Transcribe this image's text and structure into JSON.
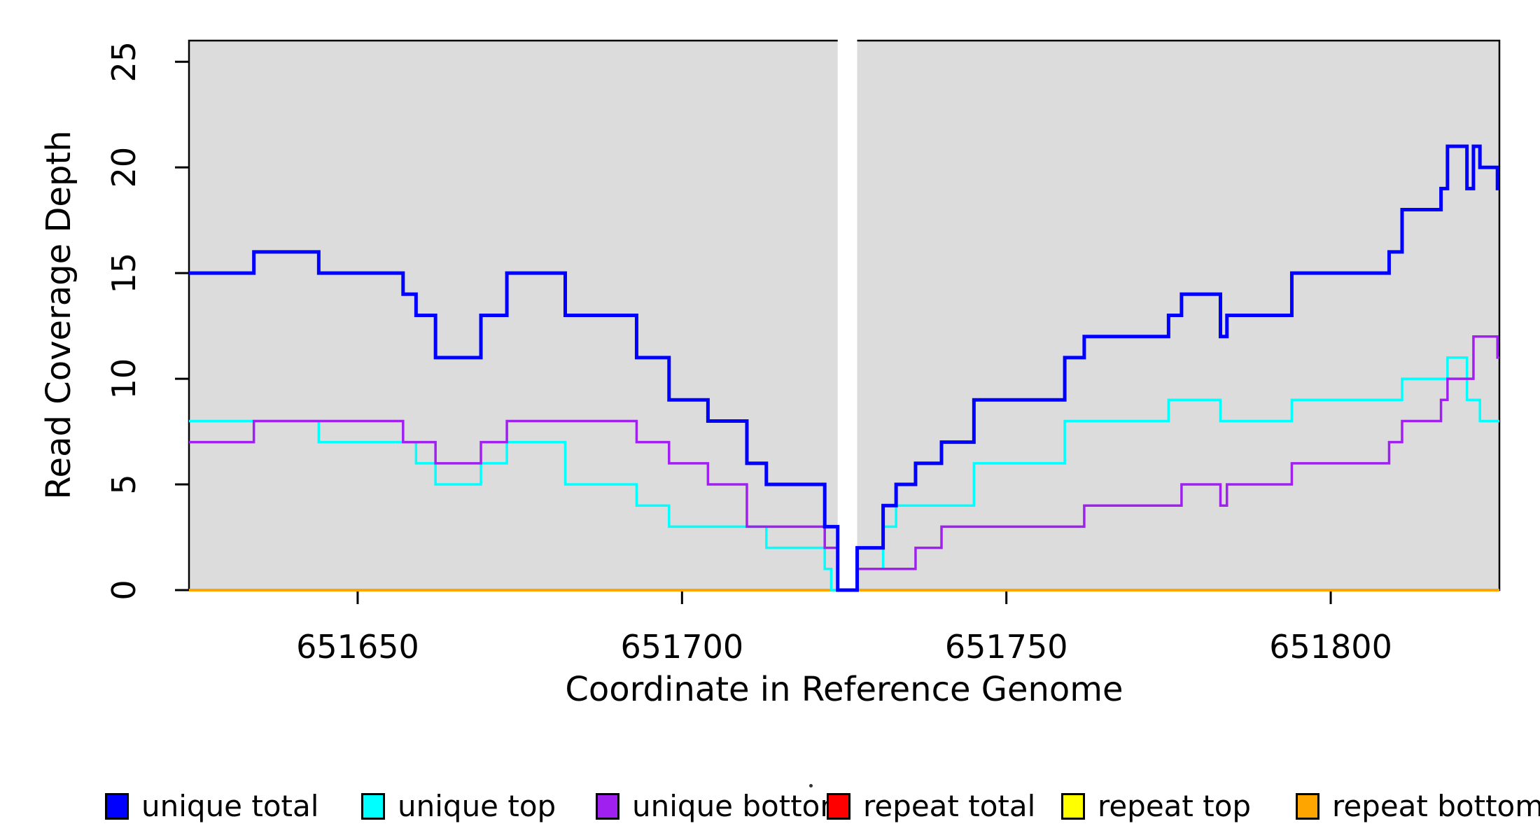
{
  "figure": {
    "background_color": "#FFFFFF",
    "plot_background_color": "#DCDCDC",
    "axis_color": "#000000"
  },
  "chart_data": {
    "type": "line",
    "subtype": "step-coverage",
    "title": "",
    "xlabel": "Coordinate in Reference Genome",
    "ylabel": "Read Coverage Depth",
    "xlim": [
      651624,
      651826
    ],
    "ylim": [
      0,
      26
    ],
    "xticks": [
      651650,
      651700,
      651750,
      651800
    ],
    "yticks": [
      0,
      5,
      10,
      15,
      20,
      25
    ],
    "grid": false,
    "legend_position": "bottom",
    "coverage_gap_region": {
      "x_start": 651724,
      "x_end": 651727,
      "color": "#FFFFFF"
    },
    "series": [
      {
        "name": "repeat total",
        "color": "#FF0000",
        "line_width": 3.5,
        "x_end": 651826,
        "steps": [
          [
            651624,
            0
          ]
        ]
      },
      {
        "name": "repeat top",
        "color": "#FFFF00",
        "line_width": 3.5,
        "x_end": 651826,
        "steps": [
          [
            651624,
            0
          ]
        ]
      },
      {
        "name": "repeat bottom",
        "color": "#FFA500",
        "line_width": 4,
        "x_end": 651826,
        "steps": [
          [
            651624,
            0
          ]
        ]
      },
      {
        "name": "unique top",
        "color": "#00FFFF",
        "line_width": 3.5,
        "x_end": 651826,
        "steps": [
          [
            651624,
            8
          ],
          [
            651644,
            7
          ],
          [
            651659,
            6
          ],
          [
            651662,
            5
          ],
          [
            651669,
            6
          ],
          [
            651673,
            7
          ],
          [
            651682,
            5
          ],
          [
            651693,
            4
          ],
          [
            651698,
            3
          ],
          [
            651713,
            2
          ],
          [
            651722,
            1
          ],
          [
            651723,
            0
          ],
          [
            651727,
            1
          ],
          [
            651731,
            3
          ],
          [
            651733,
            4
          ],
          [
            651745,
            6
          ],
          [
            651759,
            8
          ],
          [
            651775,
            9
          ],
          [
            651783,
            8
          ],
          [
            651794,
            9
          ],
          [
            651811,
            10
          ],
          [
            651818,
            11
          ],
          [
            651821,
            9
          ],
          [
            651823,
            8
          ]
        ]
      },
      {
        "name": "unique bottom",
        "color": "#A020F0",
        "line_width": 3.5,
        "x_end": 651826,
        "steps": [
          [
            651624,
            7
          ],
          [
            651634,
            8
          ],
          [
            651657,
            7
          ],
          [
            651662,
            6
          ],
          [
            651669,
            7
          ],
          [
            651673,
            8
          ],
          [
            651693,
            7
          ],
          [
            651698,
            6
          ],
          [
            651704,
            5
          ],
          [
            651710,
            3
          ],
          [
            651722,
            2
          ],
          [
            651724,
            0
          ],
          [
            651727,
            1
          ],
          [
            651736,
            2
          ],
          [
            651740,
            3
          ],
          [
            651762,
            4
          ],
          [
            651777,
            5
          ],
          [
            651783,
            4
          ],
          [
            651784,
            5
          ],
          [
            651794,
            6
          ],
          [
            651809,
            7
          ],
          [
            651811,
            8
          ],
          [
            651817,
            9
          ],
          [
            651818,
            10
          ],
          [
            651822,
            12
          ],
          [
            651825.7,
            11
          ]
        ]
      },
      {
        "name": "unique total",
        "color": "#0000FF",
        "line_width": 5,
        "x_end": 651826,
        "steps": [
          [
            651624,
            15
          ],
          [
            651634,
            16
          ],
          [
            651644,
            15
          ],
          [
            651657,
            14
          ],
          [
            651659,
            13
          ],
          [
            651662,
            11
          ],
          [
            651669,
            13
          ],
          [
            651673,
            15
          ],
          [
            651682,
            13
          ],
          [
            651693,
            11
          ],
          [
            651698,
            9
          ],
          [
            651704,
            8
          ],
          [
            651710,
            6
          ],
          [
            651713,
            5
          ],
          [
            651722,
            3
          ],
          [
            651724,
            0
          ],
          [
            651727,
            2
          ],
          [
            651731,
            4
          ],
          [
            651733,
            5
          ],
          [
            651736,
            6
          ],
          [
            651740,
            7
          ],
          [
            651745,
            9
          ],
          [
            651759,
            11
          ],
          [
            651762,
            12
          ],
          [
            651775,
            13
          ],
          [
            651777,
            14
          ],
          [
            651783,
            12
          ],
          [
            651784,
            13
          ],
          [
            651794,
            15
          ],
          [
            651809,
            16
          ],
          [
            651811,
            18
          ],
          [
            651817,
            19
          ],
          [
            651818,
            21
          ],
          [
            651821,
            19
          ],
          [
            651822,
            21
          ],
          [
            651823,
            20
          ],
          [
            651825.7,
            19
          ]
        ]
      }
    ],
    "legend": [
      {
        "label": "unique total",
        "color": "#0000FF"
      },
      {
        "label": "unique top",
        "color": "#00FFFF"
      },
      {
        "label": "unique bottom",
        "color": "#A020F0"
      },
      {
        "label": "repeat total",
        "color": "#FF0000"
      },
      {
        "label": "repeat top",
        "color": "#FFFF00"
      },
      {
        "label": "repeat bottom",
        "color": "#FFA500"
      }
    ]
  }
}
